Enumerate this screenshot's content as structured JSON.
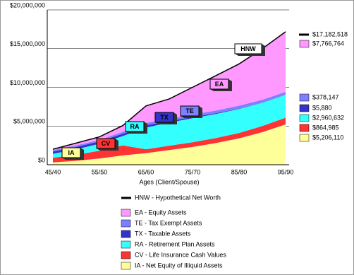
{
  "chart_data": {
    "type": "stacked-area",
    "x_label": "Ages (Client/Spouse)",
    "categories": [
      "45/40",
      null,
      "55/50",
      null,
      "65/60",
      null,
      "75/70",
      null,
      "85/80",
      null,
      "95/90"
    ],
    "ylim": [
      0,
      20000000
    ],
    "yticks": [
      {
        "value": 0,
        "label": "$0"
      },
      {
        "value": 5000000,
        "label": "$5,000,000"
      },
      {
        "value": 10000000,
        "label": "$10,000,000"
      },
      {
        "value": 15000000,
        "label": "$15,000,000"
      },
      {
        "value": 20000000,
        "label": "$20,000,000"
      }
    ],
    "grid": true,
    "series": [
      {
        "name": "IA - Net Equity of Illiquid Assets",
        "tag": "IA",
        "color": "#ffff99",
        "values": [
          300000,
          500000,
          800000,
          1200000,
          1500000,
          1900000,
          2300000,
          2800000,
          3400000,
          4200000,
          5206110
        ],
        "value_labels": [
          null,
          null,
          null,
          null,
          null,
          null,
          null,
          null,
          null,
          null,
          "$5,206,110"
        ]
      },
      {
        "name": "CV - Life Insurance Cash Values",
        "tag": "CV",
        "color": "#ff3333",
        "values": [
          600000,
          800000,
          1000000,
          1300000,
          500000,
          550000,
          600000,
          650000,
          700000,
          800000,
          864985
        ],
        "value_labels": [
          null,
          null,
          null,
          null,
          null,
          null,
          null,
          null,
          null,
          null,
          "$864,985"
        ]
      },
      {
        "name": "RA - Retirement Plan Assets",
        "tag": "RA",
        "color": "#33ffff",
        "values": [
          500000,
          700000,
          900000,
          1200000,
          2800000,
          3000000,
          3100000,
          3100000,
          3100000,
          3000000,
          2960632
        ],
        "value_labels": [
          null,
          null,
          null,
          null,
          null,
          null,
          null,
          null,
          null,
          null,
          "$2,960,632"
        ]
      },
      {
        "name": "TX - Taxable Assets",
        "tag": "TX",
        "color": "#3333cc",
        "values": [
          300000,
          300000,
          300000,
          300000,
          300000,
          200000,
          150000,
          100000,
          50000,
          20000,
          5880
        ],
        "value_labels": [
          null,
          null,
          null,
          null,
          null,
          null,
          null,
          null,
          null,
          null,
          "$5,880"
        ]
      },
      {
        "name": "TE - Tax Exempt Assets",
        "tag": "TE",
        "color": "#8080ff",
        "values": [
          200000,
          200000,
          200000,
          250000,
          300000,
          300000,
          350000,
          350000,
          370000,
          370000,
          378147
        ],
        "value_labels": [
          null,
          null,
          null,
          null,
          null,
          null,
          null,
          null,
          null,
          null,
          "$378,147"
        ]
      },
      {
        "name": "EA - Equity Assets",
        "tag": "EA",
        "color": "#ff99ff",
        "values": [
          100000,
          300000,
          400000,
          800000,
          2200000,
          2550000,
          3500000,
          4500000,
          5400000,
          6600000,
          7766764
        ],
        "value_labels": [
          null,
          null,
          null,
          null,
          null,
          null,
          null,
          null,
          null,
          null,
          "$7,766,764"
        ]
      }
    ],
    "line": {
      "name": "HNW - Hypothetical Net Worth",
      "tag": "HNW",
      "color": "#000000",
      "values": [
        2000000,
        2800000,
        3600000,
        5050000,
        7600000,
        8500000,
        10000000,
        11500000,
        13020000,
        14990000,
        17182518
      ],
      "value_labels": [
        null,
        null,
        null,
        null,
        null,
        null,
        null,
        null,
        null,
        null,
        "$17,182,518"
      ]
    }
  }
}
